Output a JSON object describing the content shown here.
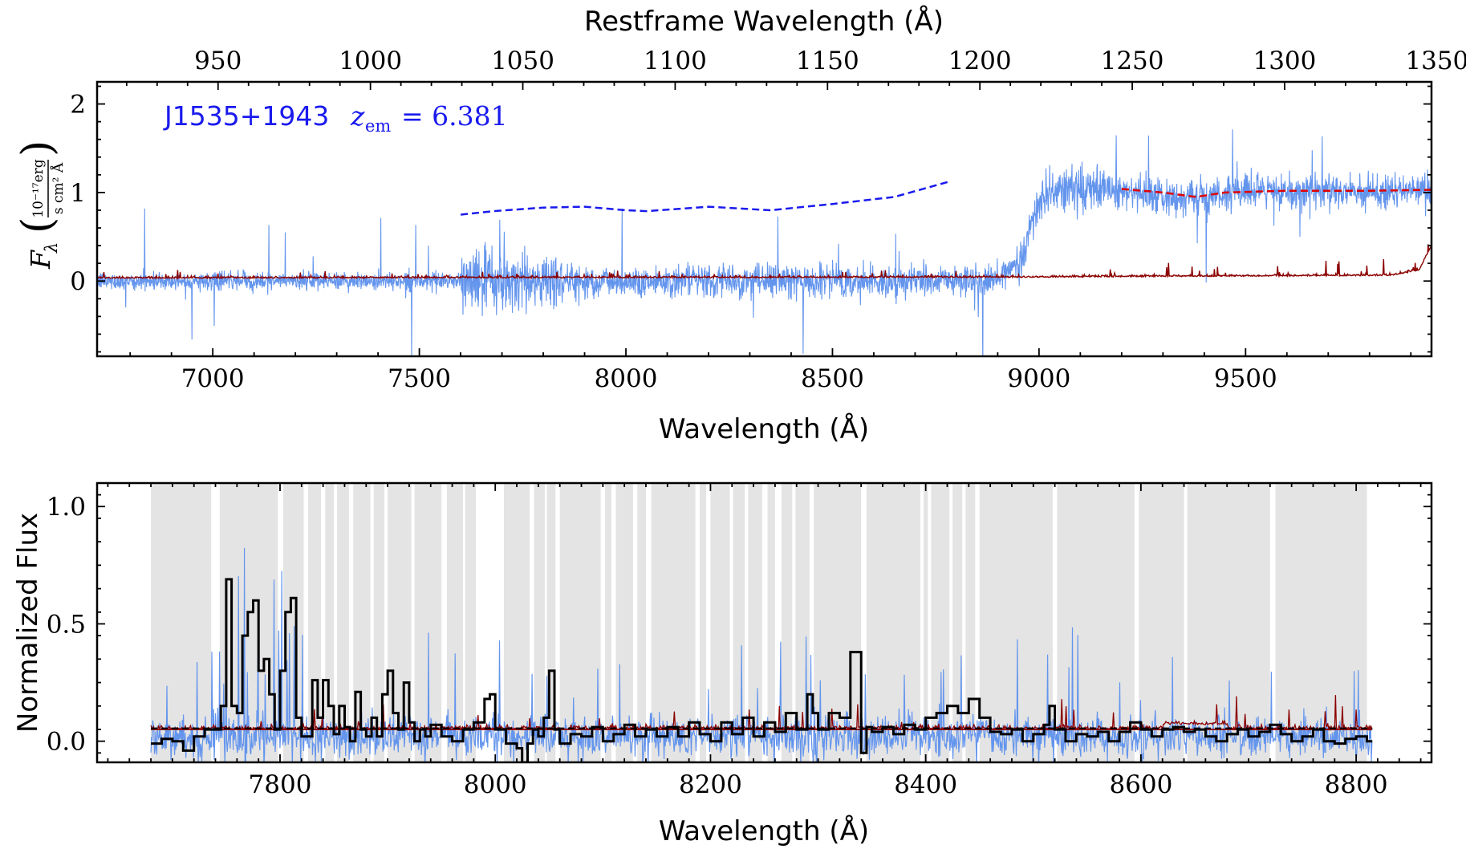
{
  "chart_data": [
    {
      "type": "line",
      "panel": "top",
      "xlabel": "Wavelength (Å)",
      "x2label": "Restframe Wavelength (Å)",
      "ylabel_parts": {
        "symbol": "F",
        "sub": "λ",
        "num": "10⁻¹⁷erg",
        "den": "s cm² Å"
      },
      "xlim": [
        6720,
        9950
      ],
      "x2lim": [
        910.3,
        1348.2
      ],
      "ylim": [
        -0.85,
        2.25
      ],
      "xticks": [
        7000,
        7500,
        8000,
        8500,
        9000,
        9500
      ],
      "x2ticks": [
        950,
        1000,
        1050,
        1100,
        1150,
        1200,
        1250,
        1300,
        1350
      ],
      "yticks": [
        0,
        1,
        2
      ],
      "annotation": {
        "name": "J1535+1943",
        "z_symbol": "z",
        "z_sub": "em",
        "z_value": "= 6.381",
        "color": "#1a1aee"
      },
      "series": [
        {
          "role": "flux",
          "color": "#6495ed",
          "noise_segments": [
            {
              "x0": 6720,
              "x1": 7600,
              "sigma": 0.05
            },
            {
              "x0": 7600,
              "x1": 7850,
              "sigma": 0.18
            },
            {
              "x0": 7850,
              "x1": 8950,
              "sigma": 0.09
            },
            {
              "x0": 8950,
              "x1": 9200,
              "sigma": 0.12
            },
            {
              "x0": 9200,
              "x1": 9950,
              "sigma": 0.1
            }
          ],
          "continuum_anchors": [
            [
              6720,
              0.0
            ],
            [
              8900,
              0.0
            ],
            [
              8960,
              0.3
            ],
            [
              9000,
              0.9
            ],
            [
              9060,
              1.05
            ],
            [
              9200,
              1.02
            ],
            [
              9350,
              0.93
            ],
            [
              9500,
              1.0
            ],
            [
              9950,
              1.02
            ]
          ]
        },
        {
          "role": "error",
          "color": "#8b0000",
          "points": [
            [
              6720,
              0.03
            ],
            [
              8950,
              0.04
            ],
            [
              9300,
              0.05
            ],
            [
              9850,
              0.06
            ],
            [
              9920,
              0.12
            ],
            [
              9950,
              0.4
            ]
          ]
        },
        {
          "role": "continuum-fit",
          "color": "#1a1aee",
          "style": "dashed",
          "points": [
            [
              7600,
              0.75
            ],
            [
              7680,
              0.79
            ],
            [
              7800,
              0.83
            ],
            [
              7900,
              0.84
            ],
            [
              8000,
              0.8
            ],
            [
              8050,
              0.79
            ],
            [
              8200,
              0.84
            ],
            [
              8350,
              0.8
            ],
            [
              8500,
              0.87
            ],
            [
              8650,
              0.95
            ],
            [
              8780,
              1.12
            ]
          ]
        },
        {
          "role": "continuum-red",
          "color": "#e00000",
          "style": "dashed",
          "points": [
            [
              9200,
              1.04
            ],
            [
              9300,
              1.0
            ],
            [
              9380,
              0.95
            ],
            [
              9450,
              1.0
            ],
            [
              9600,
              1.02
            ],
            [
              9800,
              1.02
            ],
            [
              9950,
              1.03
            ]
          ]
        }
      ]
    },
    {
      "type": "line",
      "panel": "bottom",
      "xlabel": "Wavelength (Å)",
      "ylabel": "Normalized Flux",
      "xlim": [
        7630,
        8870
      ],
      "ylim": [
        -0.09,
        1.1
      ],
      "xticks": [
        7800,
        8000,
        8200,
        8400,
        8600,
        8800
      ],
      "yticks": [
        0.0,
        0.5,
        1.0
      ],
      "ytick_labels": [
        "0.0",
        "0.5",
        "1.0"
      ],
      "masked_regions_color": "#e4e4e4",
      "masked_regions": [
        [
          7680,
          7736
        ],
        [
          7744,
          7798
        ],
        [
          7803,
          7822
        ],
        [
          7826,
          7838
        ],
        [
          7842,
          7850
        ],
        [
          7853,
          7864
        ],
        [
          7868,
          7884
        ],
        [
          7887,
          7897
        ],
        [
          7900,
          7922
        ],
        [
          7925,
          7950
        ],
        [
          7955,
          7970
        ],
        [
          7972,
          7982
        ],
        [
          8008,
          8032
        ],
        [
          8036,
          8046
        ],
        [
          8048,
          8056
        ],
        [
          8060,
          8098
        ],
        [
          8102,
          8108
        ],
        [
          8112,
          8128
        ],
        [
          8132,
          8140
        ],
        [
          8145,
          8186
        ],
        [
          8190,
          8196
        ],
        [
          8200,
          8218
        ],
        [
          8221,
          8232
        ],
        [
          8235,
          8248
        ],
        [
          8253,
          8260
        ],
        [
          8266,
          8276
        ],
        [
          8279,
          8292
        ],
        [
          8296,
          8340
        ],
        [
          8345,
          8395
        ],
        [
          8398,
          8402
        ],
        [
          8405,
          8422
        ],
        [
          8425,
          8434
        ],
        [
          8437,
          8446
        ],
        [
          8450,
          8518
        ],
        [
          8522,
          8594
        ],
        [
          8598,
          8640
        ],
        [
          8643,
          8720
        ],
        [
          8725,
          8810
        ]
      ],
      "series": [
        {
          "role": "normalized-flux",
          "color": "#6495ed",
          "x_range": [
            7680,
            8815
          ],
          "level": 0.02
        },
        {
          "role": "error",
          "color": "#8b0000",
          "x_range": [
            7680,
            8815
          ],
          "level": 0.05
        },
        {
          "role": "continuum",
          "color": "#8b0000",
          "x_range": [
            7680,
            8815
          ],
          "level": 0.05
        },
        {
          "role": "binned-flux",
          "color": "#000000",
          "style": "steps",
          "points": [
            [
              7680,
              -0.01
            ],
            [
              7690,
              0.01
            ],
            [
              7700,
              0.0
            ],
            [
              7710,
              -0.04
            ],
            [
              7720,
              0.02
            ],
            [
              7730,
              0.05
            ],
            [
              7745,
              0.15
            ],
            [
              7750,
              0.69
            ],
            [
              7755,
              0.15
            ],
            [
              7760,
              0.12
            ],
            [
              7765,
              0.45
            ],
            [
              7770,
              0.55
            ],
            [
              7775,
              0.6
            ],
            [
              7780,
              0.3
            ],
            [
              7785,
              0.35
            ],
            [
              7790,
              0.2
            ],
            [
              7795,
              0.05
            ],
            [
              7800,
              0.3
            ],
            [
              7805,
              0.55
            ],
            [
              7810,
              0.61
            ],
            [
              7815,
              0.1
            ],
            [
              7820,
              0.02
            ],
            [
              7825,
              0.02
            ],
            [
              7830,
              0.26
            ],
            [
              7835,
              0.1
            ],
            [
              7840,
              0.26
            ],
            [
              7845,
              0.15
            ],
            [
              7850,
              0.03
            ],
            [
              7855,
              0.15
            ],
            [
              7860,
              0.06
            ],
            [
              7865,
              0.0
            ],
            [
              7870,
              0.21
            ],
            [
              7875,
              0.05
            ],
            [
              7880,
              0.02
            ],
            [
              7885,
              0.1
            ],
            [
              7890,
              0.02
            ],
            [
              7895,
              0.2
            ],
            [
              7900,
              0.3
            ],
            [
              7905,
              0.12
            ],
            [
              7910,
              0.05
            ],
            [
              7915,
              0.25
            ],
            [
              7920,
              0.08
            ],
            [
              7925,
              0.0
            ],
            [
              7930,
              0.05
            ],
            [
              7935,
              0.02
            ],
            [
              7940,
              0.07
            ],
            [
              7950,
              0.02
            ],
            [
              7960,
              0.0
            ],
            [
              7970,
              0.05
            ],
            [
              7980,
              0.08
            ],
            [
              7990,
              0.18
            ],
            [
              7995,
              0.2
            ],
            [
              8000,
              0.05
            ],
            [
              8010,
              -0.01
            ],
            [
              8020,
              -0.03
            ],
            [
              8025,
              -0.09
            ],
            [
              8030,
              -0.01
            ],
            [
              8035,
              0.05
            ],
            [
              8040,
              0.02
            ],
            [
              8045,
              0.1
            ],
            [
              8050,
              0.3
            ],
            [
              8055,
              0.05
            ],
            [
              8060,
              -0.01
            ],
            [
              8070,
              0.03
            ],
            [
              8080,
              0.02
            ],
            [
              8090,
              0.06
            ],
            [
              8100,
              0.0
            ],
            [
              8110,
              0.03
            ],
            [
              8120,
              0.07
            ],
            [
              8130,
              0.02
            ],
            [
              8140,
              0.05
            ],
            [
              8150,
              0.02
            ],
            [
              8160,
              0.06
            ],
            [
              8170,
              0.02
            ],
            [
              8180,
              0.08
            ],
            [
              8190,
              0.03
            ],
            [
              8200,
              0.0
            ],
            [
              8210,
              0.08
            ],
            [
              8220,
              0.03
            ],
            [
              8230,
              0.1
            ],
            [
              8240,
              0.02
            ],
            [
              8250,
              0.08
            ],
            [
              8260,
              0.04
            ],
            [
              8270,
              0.12
            ],
            [
              8280,
              0.05
            ],
            [
              8290,
              0.2
            ],
            [
              8295,
              0.12
            ],
            [
              8300,
              0.05
            ],
            [
              8310,
              0.12
            ],
            [
              8320,
              0.1
            ],
            [
              8330,
              0.38
            ],
            [
              8335,
              0.38
            ],
            [
              8340,
              -0.05
            ],
            [
              8345,
              0.06
            ],
            [
              8350,
              0.04
            ],
            [
              8360,
              0.06
            ],
            [
              8370,
              0.03
            ],
            [
              8380,
              0.07
            ],
            [
              8390,
              0.05
            ],
            [
              8400,
              0.1
            ],
            [
              8410,
              0.12
            ],
            [
              8420,
              0.15
            ],
            [
              8430,
              0.12
            ],
            [
              8440,
              0.18
            ],
            [
              8450,
              0.1
            ],
            [
              8460,
              0.04
            ],
            [
              8470,
              0.03
            ],
            [
              8480,
              0.05
            ],
            [
              8490,
              0.0
            ],
            [
              8500,
              0.03
            ],
            [
              8510,
              0.07
            ],
            [
              8515,
              0.15
            ],
            [
              8520,
              0.05
            ],
            [
              8530,
              0.0
            ],
            [
              8540,
              0.03
            ],
            [
              8550,
              0.02
            ],
            [
              8560,
              0.04
            ],
            [
              8570,
              0.0
            ],
            [
              8580,
              0.04
            ],
            [
              8590,
              0.08
            ],
            [
              8600,
              0.05
            ],
            [
              8610,
              0.02
            ],
            [
              8620,
              0.05
            ],
            [
              8630,
              0.06
            ],
            [
              8640,
              0.04
            ],
            [
              8650,
              0.05
            ],
            [
              8660,
              0.02
            ],
            [
              8670,
              0.0
            ],
            [
              8680,
              0.03
            ],
            [
              8690,
              0.05
            ],
            [
              8700,
              0.02
            ],
            [
              8710,
              0.04
            ],
            [
              8720,
              0.07
            ],
            [
              8730,
              0.03
            ],
            [
              8740,
              0.0
            ],
            [
              8750,
              0.02
            ],
            [
              8760,
              0.05
            ],
            [
              8770,
              0.0
            ],
            [
              8780,
              -0.01
            ],
            [
              8790,
              0.01
            ],
            [
              8800,
              0.02
            ],
            [
              8810,
              0.0
            ],
            [
              8815,
              0.0
            ]
          ]
        },
        {
          "role": "continuum-dashed",
          "color": "#000000",
          "style": "dashed",
          "x_range": [
            7680,
            8815
          ],
          "level": 0.055
        }
      ]
    }
  ]
}
